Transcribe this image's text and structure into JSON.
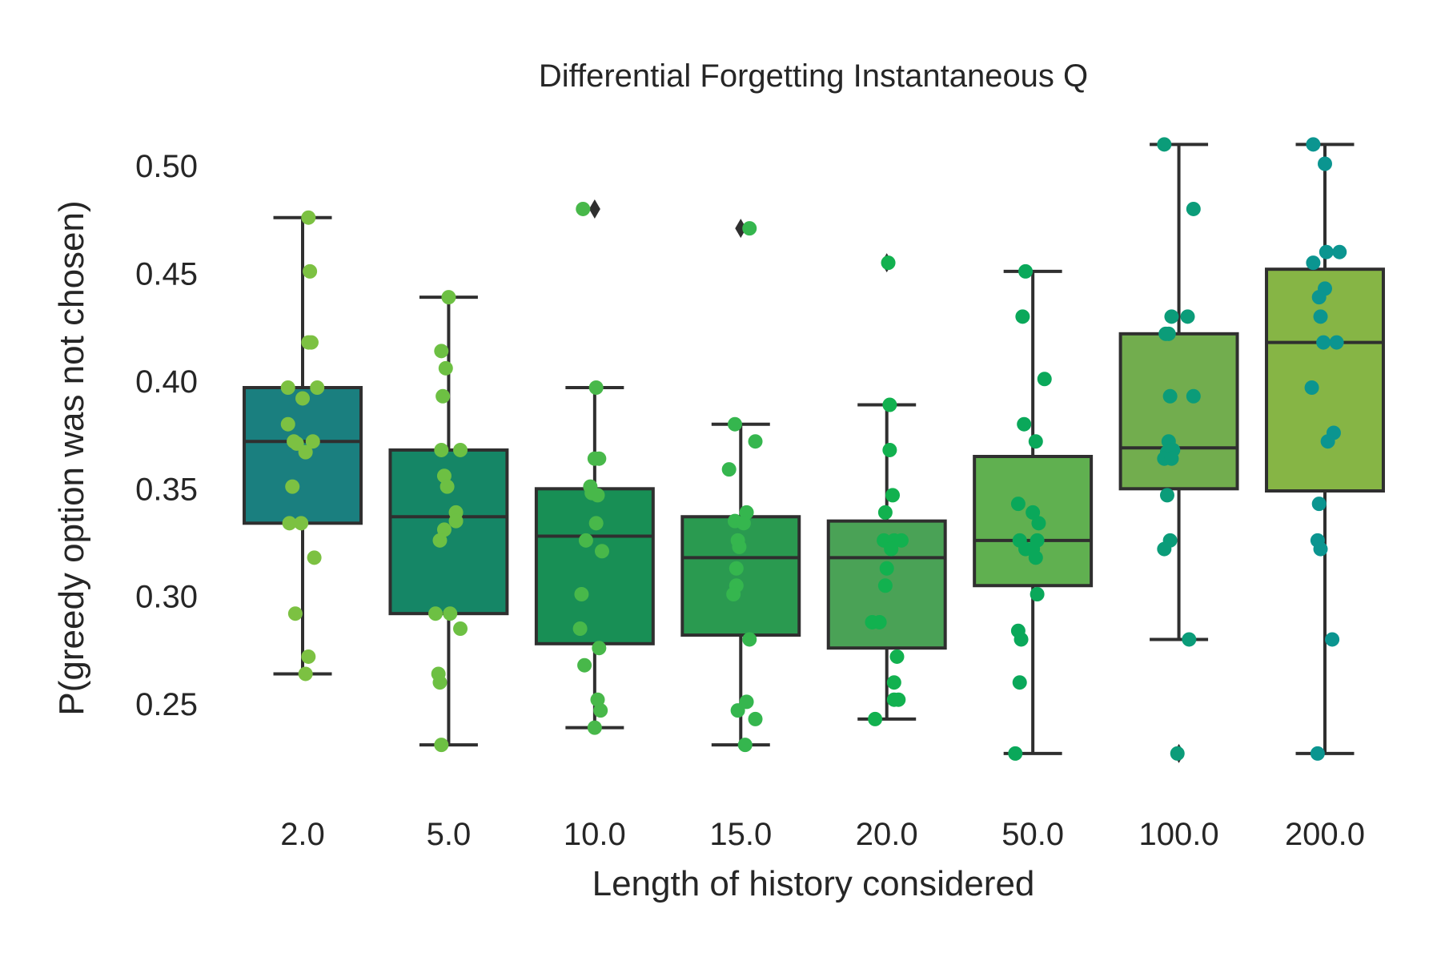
{
  "chart_data": {
    "type": "box",
    "title": "Differential Forgetting Instantaneous Q",
    "xlabel": "Length of history considered",
    "ylabel": "P(greedy option was not chosen)",
    "categories": [
      "2.0",
      "5.0",
      "10.0",
      "15.0",
      "20.0",
      "50.0",
      "100.0",
      "200.0"
    ],
    "ylim": [
      0.205,
      0.525
    ],
    "yticks": [
      0.25,
      0.3,
      0.35,
      0.4,
      0.45,
      0.5
    ],
    "ytick_labels": [
      "0.25",
      "0.30",
      "0.35",
      "0.40",
      "0.45",
      "0.50"
    ],
    "grid": false,
    "box_colors": [
      "#1a7f7f",
      "#158666",
      "#188f55",
      "#2a9a50",
      "#4aa256",
      "#60b050",
      "#72ad4e",
      "#86b545"
    ],
    "point_colors": [
      "#7cc142",
      "#6dc043",
      "#48b84a",
      "#35b64e",
      "#12b14f",
      "#0aa85a",
      "#0b9c79",
      "#0b9590"
    ],
    "outline_color": "#2f2f2f",
    "boxes": [
      {
        "whislo": 0.264,
        "q1": 0.334,
        "med": 0.372,
        "q3": 0.397,
        "whishi": 0.476,
        "fliers": []
      },
      {
        "whislo": 0.231,
        "q1": 0.292,
        "med": 0.337,
        "q3": 0.368,
        "whishi": 0.439,
        "fliers": []
      },
      {
        "whislo": 0.239,
        "q1": 0.278,
        "med": 0.328,
        "q3": 0.35,
        "whishi": 0.397,
        "fliers": [
          0.48
        ]
      },
      {
        "whislo": 0.231,
        "q1": 0.282,
        "med": 0.318,
        "q3": 0.337,
        "whishi": 0.38,
        "fliers": [
          0.471
        ]
      },
      {
        "whislo": 0.243,
        "q1": 0.276,
        "med": 0.318,
        "q3": 0.335,
        "whishi": 0.389,
        "fliers": [
          0.455
        ]
      },
      {
        "whislo": 0.227,
        "q1": 0.305,
        "med": 0.326,
        "q3": 0.365,
        "whishi": 0.451,
        "fliers": []
      },
      {
        "whislo": 0.28,
        "q1": 0.35,
        "med": 0.369,
        "q3": 0.422,
        "whishi": 0.51,
        "fliers": [
          0.227
        ]
      },
      {
        "whislo": 0.227,
        "q1": 0.349,
        "med": 0.418,
        "q3": 0.452,
        "whishi": 0.51,
        "fliers": []
      }
    ],
    "points": [
      [
        {
          "x": 0.04,
          "y": 0.476
        },
        {
          "x": 0.05,
          "y": 0.451
        },
        {
          "x": 0.04,
          "y": 0.418
        },
        {
          "x": 0.06,
          "y": 0.418
        },
        {
          "x": -0.1,
          "y": 0.397
        },
        {
          "x": 0.1,
          "y": 0.397
        },
        {
          "x": 0.0,
          "y": 0.392
        },
        {
          "x": -0.1,
          "y": 0.38
        },
        {
          "x": -0.06,
          "y": 0.372
        },
        {
          "x": 0.07,
          "y": 0.372
        },
        {
          "x": -0.04,
          "y": 0.371
        },
        {
          "x": 0.02,
          "y": 0.367
        },
        {
          "x": -0.07,
          "y": 0.351
        },
        {
          "x": -0.09,
          "y": 0.334
        },
        {
          "x": -0.01,
          "y": 0.334
        },
        {
          "x": 0.08,
          "y": 0.318
        },
        {
          "x": -0.05,
          "y": 0.292
        },
        {
          "x": 0.04,
          "y": 0.272
        },
        {
          "x": 0.02,
          "y": 0.264
        }
      ],
      [
        {
          "x": 0.0,
          "y": 0.439
        },
        {
          "x": -0.05,
          "y": 0.414
        },
        {
          "x": -0.02,
          "y": 0.406
        },
        {
          "x": -0.04,
          "y": 0.393
        },
        {
          "x": -0.05,
          "y": 0.368
        },
        {
          "x": 0.08,
          "y": 0.368
        },
        {
          "x": -0.03,
          "y": 0.356
        },
        {
          "x": -0.01,
          "y": 0.351
        },
        {
          "x": 0.05,
          "y": 0.339
        },
        {
          "x": 0.05,
          "y": 0.335
        },
        {
          "x": -0.03,
          "y": 0.331
        },
        {
          "x": -0.06,
          "y": 0.326
        },
        {
          "x": -0.09,
          "y": 0.292
        },
        {
          "x": 0.01,
          "y": 0.292
        },
        {
          "x": 0.08,
          "y": 0.285
        },
        {
          "x": -0.07,
          "y": 0.264
        },
        {
          "x": -0.06,
          "y": 0.26
        },
        {
          "x": -0.05,
          "y": 0.231
        }
      ],
      [
        {
          "x": -0.08,
          "y": 0.48
        },
        {
          "x": 0.01,
          "y": 0.397
        },
        {
          "x": 0.0,
          "y": 0.364
        },
        {
          "x": 0.03,
          "y": 0.364
        },
        {
          "x": -0.03,
          "y": 0.351
        },
        {
          "x": -0.02,
          "y": 0.348
        },
        {
          "x": 0.02,
          "y": 0.347
        },
        {
          "x": 0.01,
          "y": 0.334
        },
        {
          "x": -0.06,
          "y": 0.326
        },
        {
          "x": 0.05,
          "y": 0.321
        },
        {
          "x": -0.09,
          "y": 0.301
        },
        {
          "x": -0.1,
          "y": 0.285
        },
        {
          "x": 0.03,
          "y": 0.276
        },
        {
          "x": -0.07,
          "y": 0.268
        },
        {
          "x": 0.02,
          "y": 0.252
        },
        {
          "x": 0.04,
          "y": 0.247
        },
        {
          "x": 0.0,
          "y": 0.239
        }
      ],
      [
        {
          "x": 0.06,
          "y": 0.471
        },
        {
          "x": -0.04,
          "y": 0.38
        },
        {
          "x": 0.1,
          "y": 0.372
        },
        {
          "x": -0.08,
          "y": 0.359
        },
        {
          "x": 0.04,
          "y": 0.339
        },
        {
          "x": -0.04,
          "y": 0.335
        },
        {
          "x": 0.02,
          "y": 0.334
        },
        {
          "x": -0.02,
          "y": 0.326
        },
        {
          "x": -0.01,
          "y": 0.323
        },
        {
          "x": -0.03,
          "y": 0.313
        },
        {
          "x": -0.03,
          "y": 0.305
        },
        {
          "x": -0.05,
          "y": 0.301
        },
        {
          "x": 0.06,
          "y": 0.28
        },
        {
          "x": 0.04,
          "y": 0.251
        },
        {
          "x": -0.02,
          "y": 0.247
        },
        {
          "x": 0.1,
          "y": 0.243
        },
        {
          "x": 0.03,
          "y": 0.231
        }
      ],
      [
        {
          "x": 0.01,
          "y": 0.455
        },
        {
          "x": 0.02,
          "y": 0.389
        },
        {
          "x": 0.02,
          "y": 0.368
        },
        {
          "x": 0.04,
          "y": 0.347
        },
        {
          "x": -0.01,
          "y": 0.339
        },
        {
          "x": -0.02,
          "y": 0.326
        },
        {
          "x": 0.05,
          "y": 0.326
        },
        {
          "x": 0.1,
          "y": 0.326
        },
        {
          "x": 0.03,
          "y": 0.322
        },
        {
          "x": 0.0,
          "y": 0.313
        },
        {
          "x": -0.01,
          "y": 0.305
        },
        {
          "x": -0.1,
          "y": 0.288
        },
        {
          "x": -0.05,
          "y": 0.288
        },
        {
          "x": 0.07,
          "y": 0.272
        },
        {
          "x": 0.05,
          "y": 0.26
        },
        {
          "x": 0.05,
          "y": 0.252
        },
        {
          "x": 0.08,
          "y": 0.252
        },
        {
          "x": -0.08,
          "y": 0.243
        }
      ],
      [
        {
          "x": -0.05,
          "y": 0.451
        },
        {
          "x": -0.07,
          "y": 0.43
        },
        {
          "x": 0.08,
          "y": 0.401
        },
        {
          "x": -0.06,
          "y": 0.38
        },
        {
          "x": 0.02,
          "y": 0.372
        },
        {
          "x": -0.1,
          "y": 0.343
        },
        {
          "x": 0.0,
          "y": 0.339
        },
        {
          "x": 0.04,
          "y": 0.334
        },
        {
          "x": -0.09,
          "y": 0.326
        },
        {
          "x": -0.05,
          "y": 0.322
        },
        {
          "x": 0.03,
          "y": 0.326
        },
        {
          "x": 0.0,
          "y": 0.322
        },
        {
          "x": 0.02,
          "y": 0.318
        },
        {
          "x": 0.03,
          "y": 0.301
        },
        {
          "x": -0.1,
          "y": 0.284
        },
        {
          "x": -0.08,
          "y": 0.28
        },
        {
          "x": -0.09,
          "y": 0.26
        },
        {
          "x": -0.12,
          "y": 0.227
        }
      ],
      [
        {
          "x": -0.1,
          "y": 0.51
        },
        {
          "x": 0.1,
          "y": 0.48
        },
        {
          "x": -0.05,
          "y": 0.43
        },
        {
          "x": 0.06,
          "y": 0.43
        },
        {
          "x": -0.09,
          "y": 0.422
        },
        {
          "x": -0.07,
          "y": 0.422
        },
        {
          "x": -0.06,
          "y": 0.393
        },
        {
          "x": 0.1,
          "y": 0.393
        },
        {
          "x": -0.07,
          "y": 0.372
        },
        {
          "x": -0.08,
          "y": 0.367
        },
        {
          "x": -0.04,
          "y": 0.368
        },
        {
          "x": -0.1,
          "y": 0.364
        },
        {
          "x": -0.05,
          "y": 0.364
        },
        {
          "x": -0.08,
          "y": 0.347
        },
        {
          "x": -0.06,
          "y": 0.326
        },
        {
          "x": -0.1,
          "y": 0.322
        },
        {
          "x": 0.07,
          "y": 0.28
        },
        {
          "x": -0.01,
          "y": 0.227
        }
      ],
      [
        {
          "x": -0.08,
          "y": 0.51
        },
        {
          "x": 0.0,
          "y": 0.501
        },
        {
          "x": 0.01,
          "y": 0.46
        },
        {
          "x": 0.1,
          "y": 0.46
        },
        {
          "x": -0.08,
          "y": 0.455
        },
        {
          "x": 0.0,
          "y": 0.443
        },
        {
          "x": -0.04,
          "y": 0.439
        },
        {
          "x": -0.03,
          "y": 0.43
        },
        {
          "x": -0.01,
          "y": 0.418
        },
        {
          "x": 0.08,
          "y": 0.418
        },
        {
          "x": -0.09,
          "y": 0.397
        },
        {
          "x": 0.06,
          "y": 0.376
        },
        {
          "x": 0.02,
          "y": 0.372
        },
        {
          "x": -0.04,
          "y": 0.343
        },
        {
          "x": -0.05,
          "y": 0.326
        },
        {
          "x": -0.03,
          "y": 0.322
        },
        {
          "x": 0.05,
          "y": 0.28
        },
        {
          "x": -0.05,
          "y": 0.227
        }
      ]
    ]
  }
}
